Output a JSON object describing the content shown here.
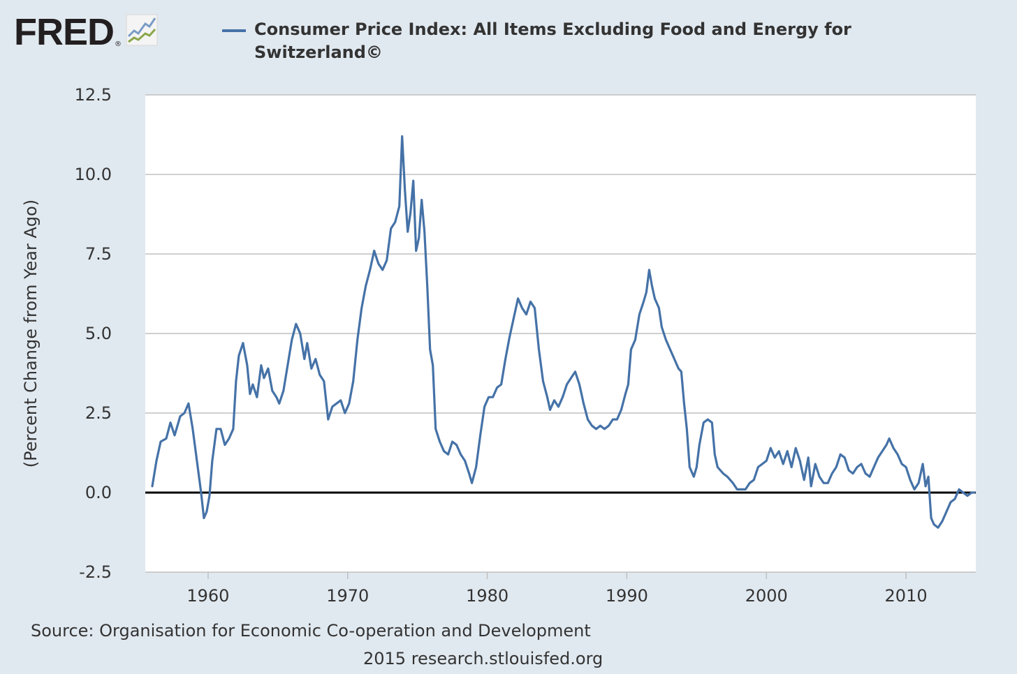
{
  "logo": {
    "text": "FRED",
    "reg_mark": "®",
    "icon": "line-chart-icon"
  },
  "colors": {
    "background": "#e1e9f0",
    "plot_background": "#ffffff",
    "series": "#4572a7",
    "gridline": "#c0c0c0",
    "zero_line": "#000000"
  },
  "footer": {
    "source": "Source: Organisation for Economic Co-operation and Development",
    "credit": "2015 research.stlouisfed.org"
  },
  "chart_data": {
    "type": "line",
    "title": "",
    "xlabel": "",
    "ylabel": "(Percent Change from Year Ago)",
    "xlim": [
      1955.5,
      2015
    ],
    "ylim": [
      -2.5,
      12.5
    ],
    "x_ticks": [
      1960,
      1970,
      1980,
      1990,
      2000,
      2010
    ],
    "y_ticks": [
      -2.5,
      0.0,
      2.5,
      5.0,
      7.5,
      10.0,
      12.5
    ],
    "y_tick_labels": [
      "-2.5",
      "0.0",
      "2.5",
      "5.0",
      "7.5",
      "10.0",
      "12.5"
    ],
    "grid": true,
    "legend_position": "top",
    "series": [
      {
        "name": "Consumer Price Index: All Items Excluding Food and Energy for Switzerland©",
        "points": [
          [
            1956.0,
            0.2
          ],
          [
            1956.3,
            1.0
          ],
          [
            1956.6,
            1.6
          ],
          [
            1957.0,
            1.7
          ],
          [
            1957.3,
            2.2
          ],
          [
            1957.6,
            1.8
          ],
          [
            1958.0,
            2.4
          ],
          [
            1958.3,
            2.5
          ],
          [
            1958.6,
            2.8
          ],
          [
            1958.9,
            2.0
          ],
          [
            1959.2,
            1.0
          ],
          [
            1959.5,
            0.0
          ],
          [
            1959.7,
            -0.8
          ],
          [
            1959.9,
            -0.6
          ],
          [
            1960.1,
            -0.1
          ],
          [
            1960.3,
            1.0
          ],
          [
            1960.6,
            2.0
          ],
          [
            1960.9,
            2.0
          ],
          [
            1961.2,
            1.5
          ],
          [
            1961.5,
            1.7
          ],
          [
            1961.8,
            2.0
          ],
          [
            1962.0,
            3.5
          ],
          [
            1962.2,
            4.3
          ],
          [
            1962.5,
            4.7
          ],
          [
            1962.8,
            4.0
          ],
          [
            1963.0,
            3.1
          ],
          [
            1963.2,
            3.4
          ],
          [
            1963.5,
            3.0
          ],
          [
            1963.8,
            4.0
          ],
          [
            1964.0,
            3.6
          ],
          [
            1964.3,
            3.9
          ],
          [
            1964.6,
            3.2
          ],
          [
            1964.9,
            3.0
          ],
          [
            1965.1,
            2.8
          ],
          [
            1965.4,
            3.2
          ],
          [
            1965.7,
            4.0
          ],
          [
            1966.0,
            4.8
          ],
          [
            1966.3,
            5.3
          ],
          [
            1966.6,
            5.0
          ],
          [
            1966.9,
            4.2
          ],
          [
            1967.1,
            4.7
          ],
          [
            1967.4,
            3.9
          ],
          [
            1967.7,
            4.2
          ],
          [
            1968.0,
            3.7
          ],
          [
            1968.3,
            3.5
          ],
          [
            1968.6,
            2.3
          ],
          [
            1968.9,
            2.7
          ],
          [
            1969.2,
            2.8
          ],
          [
            1969.5,
            2.9
          ],
          [
            1969.8,
            2.5
          ],
          [
            1970.1,
            2.8
          ],
          [
            1970.4,
            3.5
          ],
          [
            1970.7,
            4.8
          ],
          [
            1971.0,
            5.8
          ],
          [
            1971.3,
            6.5
          ],
          [
            1971.6,
            7.0
          ],
          [
            1971.9,
            7.6
          ],
          [
            1972.2,
            7.2
          ],
          [
            1972.5,
            7.0
          ],
          [
            1972.8,
            7.3
          ],
          [
            1973.1,
            8.3
          ],
          [
            1973.4,
            8.5
          ],
          [
            1973.7,
            9.0
          ],
          [
            1973.9,
            11.2
          ],
          [
            1974.1,
            9.5
          ],
          [
            1974.3,
            8.2
          ],
          [
            1974.5,
            8.8
          ],
          [
            1974.7,
            9.8
          ],
          [
            1974.9,
            7.6
          ],
          [
            1975.1,
            8.0
          ],
          [
            1975.3,
            9.2
          ],
          [
            1975.5,
            8.2
          ],
          [
            1975.7,
            6.5
          ],
          [
            1975.9,
            4.5
          ],
          [
            1976.1,
            4.0
          ],
          [
            1976.3,
            2.0
          ],
          [
            1976.6,
            1.6
          ],
          [
            1976.9,
            1.3
          ],
          [
            1977.2,
            1.2
          ],
          [
            1977.5,
            1.6
          ],
          [
            1977.8,
            1.5
          ],
          [
            1978.1,
            1.2
          ],
          [
            1978.4,
            1.0
          ],
          [
            1978.7,
            0.6
          ],
          [
            1978.9,
            0.3
          ],
          [
            1979.2,
            0.8
          ],
          [
            1979.5,
            1.8
          ],
          [
            1979.8,
            2.7
          ],
          [
            1980.1,
            3.0
          ],
          [
            1980.4,
            3.0
          ],
          [
            1980.7,
            3.3
          ],
          [
            1981.0,
            3.4
          ],
          [
            1981.3,
            4.2
          ],
          [
            1981.6,
            4.9
          ],
          [
            1981.9,
            5.5
          ],
          [
            1982.2,
            6.1
          ],
          [
            1982.5,
            5.8
          ],
          [
            1982.8,
            5.6
          ],
          [
            1983.1,
            6.0
          ],
          [
            1983.4,
            5.8
          ],
          [
            1983.7,
            4.5
          ],
          [
            1984.0,
            3.5
          ],
          [
            1984.3,
            3.0
          ],
          [
            1984.5,
            2.6
          ],
          [
            1984.8,
            2.9
          ],
          [
            1985.1,
            2.7
          ],
          [
            1985.4,
            3.0
          ],
          [
            1985.7,
            3.4
          ],
          [
            1986.0,
            3.6
          ],
          [
            1986.3,
            3.8
          ],
          [
            1986.6,
            3.4
          ],
          [
            1986.9,
            2.8
          ],
          [
            1987.2,
            2.3
          ],
          [
            1987.5,
            2.1
          ],
          [
            1987.8,
            2.0
          ],
          [
            1988.1,
            2.1
          ],
          [
            1988.4,
            2.0
          ],
          [
            1988.7,
            2.1
          ],
          [
            1989.0,
            2.3
          ],
          [
            1989.3,
            2.3
          ],
          [
            1989.6,
            2.6
          ],
          [
            1989.9,
            3.1
          ],
          [
            1990.1,
            3.4
          ],
          [
            1990.3,
            4.5
          ],
          [
            1990.6,
            4.8
          ],
          [
            1990.9,
            5.6
          ],
          [
            1991.2,
            6.0
          ],
          [
            1991.4,
            6.3
          ],
          [
            1991.6,
            7.0
          ],
          [
            1991.8,
            6.5
          ],
          [
            1992.0,
            6.1
          ],
          [
            1992.3,
            5.8
          ],
          [
            1992.5,
            5.2
          ],
          [
            1992.8,
            4.8
          ],
          [
            1993.1,
            4.5
          ],
          [
            1993.4,
            4.2
          ],
          [
            1993.7,
            3.9
          ],
          [
            1993.9,
            3.8
          ],
          [
            1994.1,
            2.8
          ],
          [
            1994.3,
            2.0
          ],
          [
            1994.5,
            0.8
          ],
          [
            1994.8,
            0.5
          ],
          [
            1995.0,
            0.8
          ],
          [
            1995.2,
            1.5
          ],
          [
            1995.5,
            2.2
          ],
          [
            1995.8,
            2.3
          ],
          [
            1996.1,
            2.2
          ],
          [
            1996.3,
            1.2
          ],
          [
            1996.5,
            0.8
          ],
          [
            1996.9,
            0.6
          ],
          [
            1997.2,
            0.5
          ],
          [
            1997.6,
            0.3
          ],
          [
            1997.9,
            0.1
          ],
          [
            1998.2,
            0.1
          ],
          [
            1998.5,
            0.1
          ],
          [
            1998.8,
            0.3
          ],
          [
            1999.1,
            0.4
          ],
          [
            1999.4,
            0.8
          ],
          [
            1999.7,
            0.9
          ],
          [
            2000.0,
            1.0
          ],
          [
            2000.3,
            1.4
          ],
          [
            2000.6,
            1.1
          ],
          [
            2000.9,
            1.3
          ],
          [
            2001.2,
            0.9
          ],
          [
            2001.5,
            1.3
          ],
          [
            2001.8,
            0.8
          ],
          [
            2002.1,
            1.4
          ],
          [
            2002.4,
            1.0
          ],
          [
            2002.7,
            0.4
          ],
          [
            2003.0,
            1.1
          ],
          [
            2003.2,
            0.2
          ],
          [
            2003.5,
            0.9
          ],
          [
            2003.8,
            0.5
          ],
          [
            2004.1,
            0.3
          ],
          [
            2004.4,
            0.3
          ],
          [
            2004.7,
            0.6
          ],
          [
            2005.0,
            0.8
          ],
          [
            2005.3,
            1.2
          ],
          [
            2005.6,
            1.1
          ],
          [
            2005.9,
            0.7
          ],
          [
            2006.2,
            0.6
          ],
          [
            2006.5,
            0.8
          ],
          [
            2006.8,
            0.9
          ],
          [
            2007.1,
            0.6
          ],
          [
            2007.4,
            0.5
          ],
          [
            2007.7,
            0.8
          ],
          [
            2008.0,
            1.1
          ],
          [
            2008.3,
            1.3
          ],
          [
            2008.6,
            1.5
          ],
          [
            2008.8,
            1.7
          ],
          [
            2009.1,
            1.4
          ],
          [
            2009.4,
            1.2
          ],
          [
            2009.7,
            0.9
          ],
          [
            2010.0,
            0.8
          ],
          [
            2010.3,
            0.4
          ],
          [
            2010.6,
            0.1
          ],
          [
            2010.9,
            0.3
          ],
          [
            2011.2,
            0.9
          ],
          [
            2011.4,
            0.2
          ],
          [
            2011.6,
            0.5
          ],
          [
            2011.8,
            -0.8
          ],
          [
            2012.0,
            -1.0
          ],
          [
            2012.3,
            -1.1
          ],
          [
            2012.6,
            -0.9
          ],
          [
            2012.9,
            -0.6
          ],
          [
            2013.2,
            -0.3
          ],
          [
            2013.5,
            -0.2
          ],
          [
            2013.8,
            0.1
          ],
          [
            2014.1,
            0.0
          ],
          [
            2014.4,
            -0.1
          ],
          [
            2014.7,
            0.0
          ],
          [
            2014.9,
            0.0
          ]
        ]
      }
    ]
  }
}
